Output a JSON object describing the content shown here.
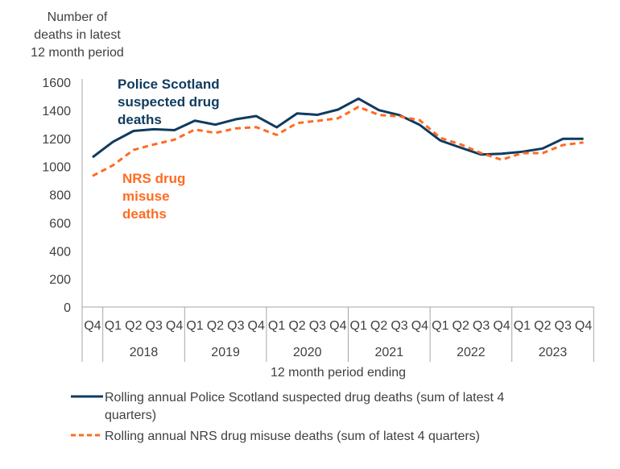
{
  "chart_data": {
    "type": "line",
    "ylabel_lines": [
      "Number of",
      "deaths in latest",
      "12 month period"
    ],
    "xlabel": "12 month period ending",
    "ylim": [
      0,
      1600
    ],
    "yticks": [
      0,
      200,
      400,
      600,
      800,
      1000,
      1200,
      1400,
      1600
    ],
    "quarters": [
      "Q4",
      "Q1",
      "Q2",
      "Q3",
      "Q4",
      "Q1",
      "Q2",
      "Q3",
      "Q4",
      "Q1",
      "Q2",
      "Q3",
      "Q4",
      "Q1",
      "Q2",
      "Q3",
      "Q4",
      "Q1",
      "Q2",
      "Q3",
      "Q4",
      "Q1",
      "Q2",
      "Q3",
      "Q4"
    ],
    "years": [
      "2018",
      "2019",
      "2020",
      "2021",
      "2022",
      "2023"
    ],
    "series": [
      {
        "name": "Rolling annual Police Scotland suspected drug deaths (sum of latest 4 quarters)",
        "annotation": [
          "Police Scotland",
          "suspected drug",
          "deaths"
        ],
        "color": "#0F3B5F",
        "style": "solid",
        "values": [
          1066,
          1176,
          1253,
          1265,
          1259,
          1326,
          1298,
          1336,
          1359,
          1279,
          1378,
          1368,
          1405,
          1483,
          1401,
          1366,
          1296,
          1185,
          1134,
          1085,
          1091,
          1105,
          1128,
          1197,
          1197
        ]
      },
      {
        "name": "Rolling annual NRS drug misuse deaths (sum of latest 4 quarters)",
        "annotation": [
          "NRS drug",
          "misuse",
          "deaths"
        ],
        "color": "#FF6B22",
        "style": "dashed",
        "values": [
          933,
          1009,
          1118,
          1157,
          1191,
          1263,
          1239,
          1271,
          1280,
          1225,
          1309,
          1325,
          1343,
          1424,
          1367,
          1357,
          1329,
          1204,
          1157,
          1095,
          1048,
          1095,
          1095,
          1153,
          1171
        ]
      }
    ],
    "legend": {
      "lines": [
        [
          "Rolling annual Police Scotland suspected drug deaths (sum of latest 4",
          "quarters)"
        ],
        [
          "Rolling annual NRS drug misuse deaths (sum of latest 4 quarters)"
        ]
      ],
      "placement": "bottom"
    },
    "grid": false
  }
}
